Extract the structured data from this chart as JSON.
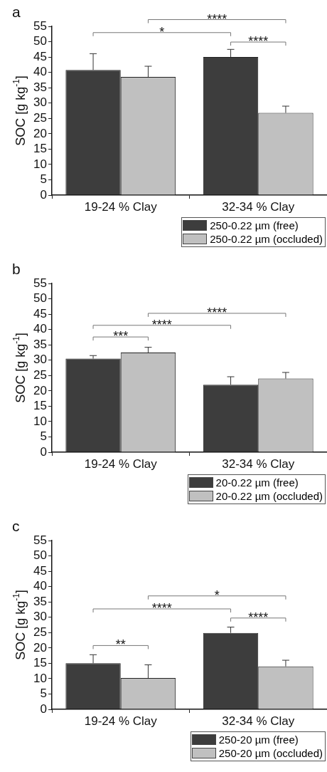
{
  "chart_data": [
    {
      "type": "bar",
      "title": "a",
      "ylabel": "SOC [g kg$^{-1}$]",
      "categories": [
        "19-24 % Clay",
        "32-34 % Clay"
      ],
      "ylim": [
        0,
        55
      ],
      "yticks": [
        0,
        5,
        10,
        15,
        20,
        25,
        30,
        35,
        40,
        45,
        50,
        55
      ],
      "grid": false,
      "legend": "bottom right",
      "series": [
        {
          "name": "250-0.22 µm (free)",
          "color": "#3d3d3d",
          "values": [
            40.8,
            45
          ],
          "errors": [
            [
              40.8,
              46.1
            ],
            [
              45,
              47.5
            ]
          ]
        },
        {
          "name": "250-0.22 µm (occluded)",
          "color": "#c0c0c0",
          "values": [
            38.5,
            26.8
          ],
          "errors": [
            [
              38.5,
              42
            ],
            [
              26.8,
              29
            ]
          ]
        }
      ],
      "annotations": [
        "****",
        "*",
        "****"
      ]
    },
    {
      "type": "bar",
      "title": "b",
      "ylabel": "SOC [g kg$^{-1}$]",
      "categories": [
        "19-24 % Clay",
        "32-34 % Clay"
      ],
      "ylim": [
        0,
        55
      ],
      "yticks": [
        0,
        5,
        10,
        15,
        20,
        25,
        30,
        35,
        40,
        45,
        50,
        55
      ],
      "grid": false,
      "legend": "bottom right",
      "series": [
        {
          "name": "20-0.22 µm (free)",
          "color": "#3d3d3d",
          "values": [
            30.5,
            22
          ],
          "errors": [
            [
              30.5,
              31.5
            ],
            [
              22,
              24.6
            ]
          ]
        },
        {
          "name": "20-0.22 µm (occluded)",
          "color": "#c0c0c0",
          "values": [
            32.5,
            24
          ],
          "errors": [
            [
              32.5,
              34.2
            ],
            [
              24,
              26
            ]
          ]
        }
      ],
      "annotations": [
        "****",
        "****",
        "***"
      ]
    },
    {
      "type": "bar",
      "title": "c",
      "ylabel": "SOC [g kg$^{-1}$]",
      "categories": [
        "19-24 % Clay",
        "32-34 % Clay"
      ],
      "ylim": [
        0,
        55
      ],
      "yticks": [
        0,
        5,
        10,
        15,
        20,
        25,
        30,
        35,
        40,
        45,
        50,
        55
      ],
      "grid": false,
      "legend": "bottom right",
      "series": [
        {
          "name": "250-20 µm (free)",
          "color": "#3d3d3d",
          "values": [
            15,
            24.9
          ],
          "errors": [
            [
              15,
              17.8
            ],
            [
              24.9,
              26.8
            ]
          ]
        },
        {
          "name": "250-20 µm (occluded)",
          "color": "#c0c0c0",
          "values": [
            10.2,
            14
          ],
          "errors": [
            [
              10.2,
              14.5
            ],
            [
              14,
              16
            ]
          ]
        }
      ],
      "annotations": [
        "*",
        "****",
        "****",
        "**"
      ]
    }
  ]
}
